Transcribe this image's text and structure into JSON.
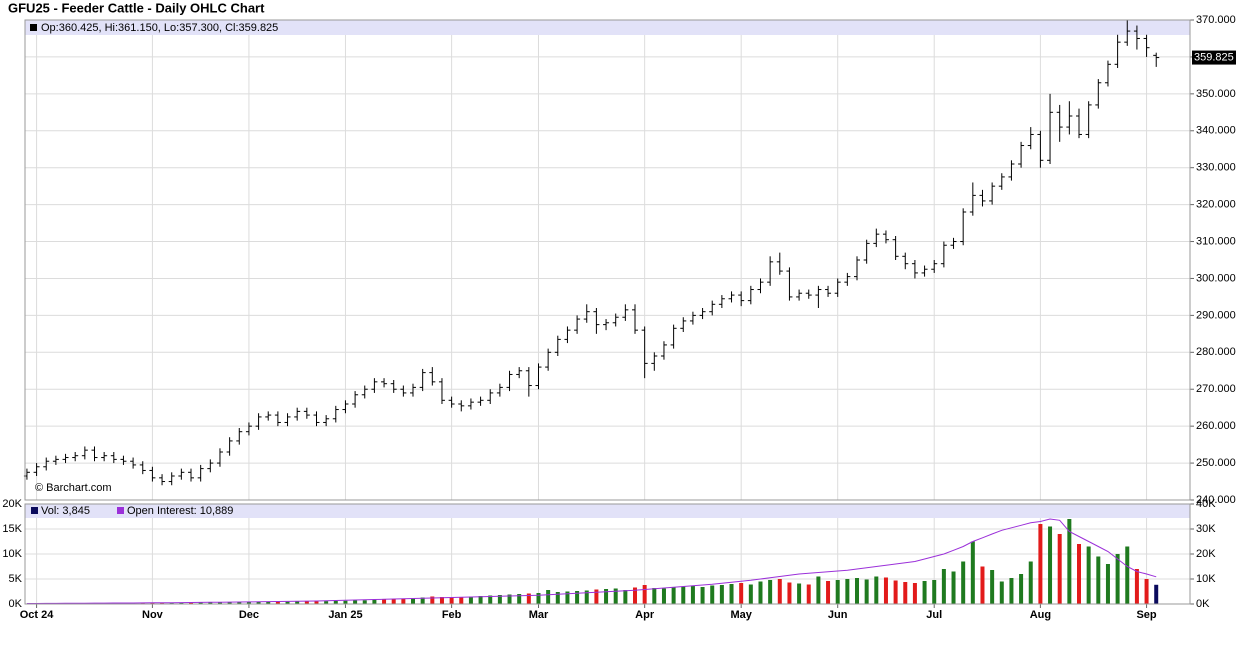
{
  "chart_data": [
    {
      "type": "ohlc",
      "title": "GFU25 - Feeder Cattle - Daily OHLC Chart",
      "legend": "Op:360.425, Hi:361.150, Lo:357.300, Cl:359.825",
      "source": "© Barchart.com",
      "color": "#000000",
      "xlim": [
        -0.2,
        120.5
      ],
      "ylim": [
        240,
        370
      ],
      "yticks": [
        {
          "value": 240,
          "label": "240.000"
        },
        {
          "value": 250,
          "label": "250.000"
        },
        {
          "value": 260,
          "label": "260.000"
        },
        {
          "value": 270,
          "label": "270.000"
        },
        {
          "value": 280,
          "label": "280.000"
        },
        {
          "value": 290,
          "label": "290.000"
        },
        {
          "value": 300,
          "label": "300.000"
        },
        {
          "value": 310,
          "label": "310.000"
        },
        {
          "value": 320,
          "label": "320.000"
        },
        {
          "value": 330,
          "label": "330.000"
        },
        {
          "value": 340,
          "label": "340.000"
        },
        {
          "value": 350,
          "label": "350.000"
        },
        {
          "value": 360,
          "label": "360.000"
        },
        {
          "value": 370,
          "label": "370.000"
        }
      ],
      "grid": true,
      "ohlc": [
        [
          246.5,
          248.5,
          245.5,
          247.5
        ],
        [
          247.5,
          250,
          246.5,
          249
        ],
        [
          249,
          251.5,
          248,
          250.5
        ],
        [
          250.5,
          252,
          249.5,
          251
        ],
        [
          251,
          252.5,
          250,
          251.5
        ],
        [
          251.5,
          253,
          250.5,
          252
        ],
        [
          252,
          254.5,
          251,
          253.5
        ],
        [
          253.5,
          254.5,
          250.5,
          251.5
        ],
        [
          251.5,
          253,
          250.5,
          252
        ],
        [
          252,
          253,
          250,
          251
        ],
        [
          251,
          252,
          249.5,
          250.5
        ],
        [
          250.5,
          251.5,
          248.5,
          249.5
        ],
        [
          249.5,
          250.5,
          247,
          248
        ],
        [
          248,
          249,
          245,
          246
        ],
        [
          246,
          247,
          244,
          245
        ],
        [
          245,
          247.5,
          244,
          246.5
        ],
        [
          246.5,
          248.5,
          245.5,
          247.5
        ],
        [
          247.5,
          248.5,
          245,
          246
        ],
        [
          246,
          249.5,
          245,
          248.5
        ],
        [
          248.5,
          251,
          247.5,
          250
        ],
        [
          250,
          254,
          249,
          253
        ],
        [
          253,
          257,
          252,
          256
        ],
        [
          256,
          259.5,
          255,
          258.5
        ],
        [
          258.5,
          261,
          257.5,
          260
        ],
        [
          260,
          263.5,
          259,
          262.5
        ],
        [
          262.5,
          264,
          261.5,
          263
        ],
        [
          263,
          264,
          260,
          261
        ],
        [
          261,
          263.5,
          260,
          262.5
        ],
        [
          262.5,
          265,
          261.5,
          264
        ],
        [
          264,
          265,
          262,
          263
        ],
        [
          263,
          264,
          260,
          261
        ],
        [
          261,
          263,
          260,
          262
        ],
        [
          262,
          265.5,
          261,
          264.5
        ],
        [
          264.5,
          267,
          263.5,
          266
        ],
        [
          266,
          269.5,
          265,
          268.5
        ],
        [
          268.5,
          271,
          267.5,
          270
        ],
        [
          270,
          273,
          269,
          272
        ],
        [
          272,
          273,
          270.5,
          271.5
        ],
        [
          271.5,
          272.5,
          269,
          270
        ],
        [
          270,
          271,
          268,
          269
        ],
        [
          269,
          271.5,
          268,
          270.5
        ],
        [
          270.5,
          275.5,
          269.5,
          274.5
        ],
        [
          274.5,
          276,
          271,
          272
        ],
        [
          272,
          273,
          266,
          267
        ],
        [
          267,
          268,
          265,
          266
        ],
        [
          266,
          267,
          264,
          265.5
        ],
        [
          265.5,
          267.5,
          264.5,
          266.5
        ],
        [
          266.5,
          268,
          265.5,
          267
        ],
        [
          267,
          270,
          266,
          269
        ],
        [
          269,
          271.5,
          268,
          270.5
        ],
        [
          270.5,
          275,
          269.5,
          274
        ],
        [
          274,
          276,
          273,
          275
        ],
        [
          275,
          276,
          268,
          271
        ],
        [
          271,
          277,
          270,
          276
        ],
        [
          276,
          281,
          275,
          280
        ],
        [
          280,
          284.5,
          279,
          283.5
        ],
        [
          283.5,
          287,
          282.5,
          286
        ],
        [
          286,
          290,
          285,
          289
        ],
        [
          289,
          293,
          288,
          291
        ],
        [
          291,
          292,
          285,
          287.5
        ],
        [
          287.5,
          289,
          286,
          288
        ],
        [
          288,
          290.5,
          287,
          289.5
        ],
        [
          289.5,
          293,
          288.5,
          291.5
        ],
        [
          291.5,
          293,
          285,
          286
        ],
        [
          286,
          287,
          273,
          277
        ],
        [
          277,
          280,
          275,
          279
        ],
        [
          279,
          283,
          278,
          282
        ],
        [
          282,
          287.5,
          281,
          286.5
        ],
        [
          286.5,
          289.5,
          285.5,
          288.5
        ],
        [
          288.5,
          291,
          287.5,
          290
        ],
        [
          290,
          292,
          289,
          291
        ],
        [
          291,
          294,
          290,
          293
        ],
        [
          293,
          295.5,
          292,
          294.5
        ],
        [
          294.5,
          296.5,
          293.5,
          295.5
        ],
        [
          295.5,
          296.5,
          292.5,
          294
        ],
        [
          294,
          298,
          293,
          297
        ],
        [
          297,
          300,
          296,
          299
        ],
        [
          299,
          306,
          298,
          304.5
        ],
        [
          304.5,
          307,
          301,
          302
        ],
        [
          302,
          303,
          294,
          295
        ],
        [
          295,
          297,
          294,
          296
        ],
        [
          296,
          297,
          294.5,
          295.5
        ],
        [
          295.5,
          298,
          292,
          297
        ],
        [
          297,
          298,
          295,
          296
        ],
        [
          296,
          300,
          295,
          299
        ],
        [
          299,
          301.5,
          298,
          300.5
        ],
        [
          300.5,
          306,
          299.5,
          305
        ],
        [
          305,
          310.5,
          304,
          309.5
        ],
        [
          309.5,
          313.5,
          308.5,
          312
        ],
        [
          312,
          313,
          309.5,
          310.5
        ],
        [
          310.5,
          311.5,
          305,
          306
        ],
        [
          306,
          307,
          302.5,
          304
        ],
        [
          304,
          305,
          300,
          301.5
        ],
        [
          301.5,
          303.5,
          300.5,
          302.5
        ],
        [
          302.5,
          305,
          301.5,
          304
        ],
        [
          304,
          310,
          303,
          309
        ],
        [
          309,
          311,
          308,
          310
        ],
        [
          310,
          319,
          309,
          318
        ],
        [
          318,
          326,
          317,
          322.5
        ],
        [
          322.5,
          324,
          319.5,
          321
        ],
        [
          321,
          326,
          320,
          325
        ],
        [
          325,
          328.5,
          324,
          327.5
        ],
        [
          327.5,
          332,
          326.5,
          331
        ],
        [
          331,
          337,
          330,
          336
        ],
        [
          336,
          341,
          335,
          339
        ],
        [
          339,
          340,
          330,
          332
        ],
        [
          332,
          350,
          331,
          345
        ],
        [
          345,
          347,
          337,
          341
        ],
        [
          341,
          348,
          339,
          344
        ],
        [
          344,
          346,
          338,
          339
        ],
        [
          339,
          348,
          338,
          347
        ],
        [
          347,
          354,
          346,
          353
        ],
        [
          353,
          359,
          352,
          358
        ],
        [
          358,
          366,
          357,
          364
        ],
        [
          364,
          370,
          363,
          367
        ],
        [
          367,
          368.5,
          362,
          365
        ],
        [
          365,
          366,
          360,
          362.5
        ],
        [
          360.425,
          361.15,
          357.3,
          359.825
        ]
      ]
    },
    {
      "type": "bar",
      "xlim": [
        -0.2,
        120.5
      ],
      "xticks": [
        {
          "value": 1,
          "label": "Oct 24"
        },
        {
          "value": 13,
          "label": "Nov"
        },
        {
          "value": 23,
          "label": "Dec"
        },
        {
          "value": 33,
          "label": "Jan 25"
        },
        {
          "value": 44,
          "label": "Feb"
        },
        {
          "value": 53,
          "label": "Mar"
        },
        {
          "value": 64,
          "label": "Apr"
        },
        {
          "value": 74,
          "label": "May"
        },
        {
          "value": 84,
          "label": "Jun"
        },
        {
          "value": 94,
          "label": "Jul"
        },
        {
          "value": 105,
          "label": "Aug"
        },
        {
          "value": 116,
          "label": "Sep"
        }
      ],
      "ylim": [
        0,
        20000
      ],
      "yticks": [
        {
          "value": 0,
          "label": "0K"
        },
        {
          "value": 5000,
          "label": "5K"
        },
        {
          "value": 10000,
          "label": "10K"
        },
        {
          "value": 15000,
          "label": "15K"
        },
        {
          "value": 20000,
          "label": "20K"
        }
      ],
      "y2lim": [
        0,
        40000
      ],
      "y2ticks": [
        {
          "value": 0,
          "label": "0K"
        },
        {
          "value": 10000,
          "label": "10K"
        },
        {
          "value": 20000,
          "label": "20K"
        },
        {
          "value": 30000,
          "label": "30K"
        },
        {
          "value": 40000,
          "label": "40K"
        }
      ],
      "up_color": "#1f7a1f",
      "down_color": "#e21b1b",
      "series": [
        {
          "name": "Vol: 3,845",
          "color": "#0a0a5c",
          "values": [
            100,
            120,
            150,
            130,
            160,
            140,
            180,
            150,
            170,
            160,
            200,
            180,
            210,
            220,
            250,
            230,
            260,
            280,
            300,
            320,
            350,
            400,
            380,
            420,
            450,
            480,
            500,
            470,
            520,
            550,
            500,
            580,
            600,
            650,
            700,
            750,
            800,
            900,
            1000,
            1100,
            1200,
            1300,
            1500,
            1400,
            1300,
            1400,
            1500,
            1600,
            1700,
            1800,
            1900,
            2000,
            2100,
            2200,
            2800,
            2400,
            2500,
            2600,
            2700,
            2900,
            3000,
            3100,
            2800,
            3300,
            3800,
            3200,
            3100,
            3300,
            3500,
            3600,
            3400,
            3700,
            3800,
            4000,
            4200,
            3900,
            4500,
            4800,
            5000,
            4300,
            4100,
            3900,
            5500,
            4600,
            4800,
            5000,
            5200,
            4900,
            5500,
            5300,
            4700,
            4400,
            4200,
            4600,
            4800,
            7000,
            6500,
            8500,
            12500,
            7500,
            6800,
            4500,
            5200,
            6000,
            8500,
            16000,
            15500,
            14000,
            17000,
            12000,
            11500,
            9500,
            8000,
            10000,
            11500,
            7000,
            5000,
            3845
          ]
        },
        {
          "name": "Open Interest: 10,889",
          "color": "#9b30d9",
          "axis": "y2",
          "values": [
            200,
            220,
            240,
            260,
            280,
            300,
            320,
            340,
            360,
            380,
            400,
            420,
            450,
            480,
            500,
            530,
            560,
            600,
            640,
            680,
            720,
            760,
            800,
            850,
            900,
            950,
            1000,
            1050,
            1100,
            1150,
            1200,
            1300,
            1400,
            1500,
            1600,
            1700,
            1800,
            1900,
            2000,
            2100,
            2200,
            2300,
            2400,
            2500,
            2600,
            2700,
            2800,
            2900,
            3000,
            3100,
            3200,
            3300,
            3400,
            3500,
            3700,
            3900,
            4100,
            4300,
            4500,
            4700,
            4900,
            5100,
            5300,
            5500,
            5800,
            6100,
            6400,
            6700,
            7000,
            7300,
            7600,
            7900,
            8300,
            8700,
            9100,
            9500,
            10000,
            10500,
            11000,
            11500,
            12000,
            12300,
            12600,
            12900,
            13200,
            13500,
            14000,
            14500,
            15000,
            15500,
            16000,
            16500,
            17000,
            18000,
            19000,
            20000,
            21500,
            23000,
            25000,
            26500,
            28000,
            29500,
            30500,
            31500,
            32500,
            33000,
            34000,
            33500,
            29000,
            27000,
            25000,
            23000,
            21000,
            18000,
            15000,
            13000,
            12000,
            10889
          ]
        }
      ]
    }
  ]
}
